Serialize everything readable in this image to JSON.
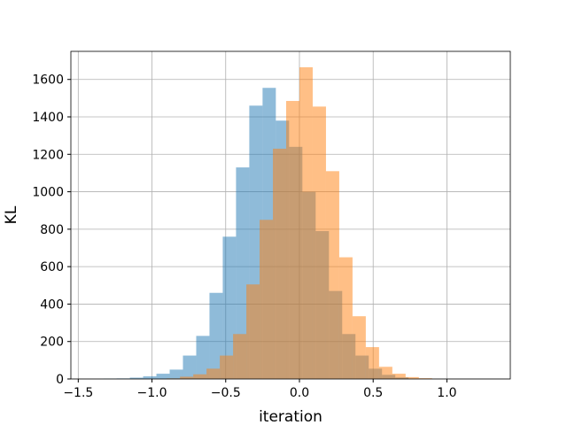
{
  "chart_data": {
    "type": "bar",
    "subtype": "histogram",
    "title": "",
    "xlabel": "iteration",
    "ylabel": "KL",
    "xlim": [
      -1.55,
      1.43
    ],
    "ylim": [
      0,
      1750
    ],
    "x_ticks": [
      -1.5,
      -1.0,
      -0.5,
      0.0,
      0.5,
      1.0
    ],
    "x_tick_labels": [
      "−1.5",
      "−1.0",
      "−0.5",
      "0.0",
      "0.5",
      "1.0"
    ],
    "y_ticks": [
      0,
      200,
      400,
      600,
      800,
      1000,
      1200,
      1400,
      1600
    ],
    "y_tick_labels": [
      "0",
      "200",
      "400",
      "600",
      "800",
      "1000",
      "1200",
      "1400",
      "1600"
    ],
    "grid": true,
    "legend": "none",
    "series": [
      {
        "color": "#1f77b4",
        "alpha": 0.5,
        "bins": [
          [
            -1.33,
            -1.24,
            2
          ],
          [
            -1.24,
            -1.15,
            3
          ],
          [
            -1.15,
            -1.06,
            7
          ],
          [
            -1.06,
            -0.97,
            14
          ],
          [
            -0.97,
            -0.88,
            28
          ],
          [
            -0.88,
            -0.79,
            50
          ],
          [
            -0.79,
            -0.7,
            125
          ],
          [
            -0.7,
            -0.61,
            230
          ],
          [
            -0.61,
            -0.52,
            460
          ],
          [
            -0.52,
            -0.43,
            760
          ],
          [
            -0.43,
            -0.34,
            1130
          ],
          [
            -0.34,
            -0.25,
            1460
          ],
          [
            -0.25,
            -0.16,
            1555
          ],
          [
            -0.16,
            -0.07,
            1380
          ],
          [
            -0.07,
            0.02,
            1240
          ],
          [
            0.02,
            0.11,
            1000
          ],
          [
            0.11,
            0.2,
            790
          ],
          [
            0.2,
            0.29,
            470
          ],
          [
            0.29,
            0.38,
            240
          ],
          [
            0.38,
            0.47,
            125
          ],
          [
            0.47,
            0.56,
            55
          ],
          [
            0.56,
            0.65,
            22
          ],
          [
            0.65,
            0.74,
            8
          ]
        ]
      },
      {
        "color": "#ff7f0e",
        "alpha": 0.5,
        "bins": [
          [
            -0.9,
            -0.81,
            3
          ],
          [
            -0.81,
            -0.72,
            12
          ],
          [
            -0.72,
            -0.63,
            25
          ],
          [
            -0.63,
            -0.54,
            55
          ],
          [
            -0.54,
            -0.45,
            125
          ],
          [
            -0.45,
            -0.36,
            240
          ],
          [
            -0.36,
            -0.27,
            505
          ],
          [
            -0.27,
            -0.18,
            850
          ],
          [
            -0.18,
            -0.09,
            1230
          ],
          [
            -0.09,
            0.0,
            1485
          ],
          [
            0.0,
            0.09,
            1665
          ],
          [
            0.09,
            0.18,
            1455
          ],
          [
            0.18,
            0.27,
            1110
          ],
          [
            0.27,
            0.36,
            650
          ],
          [
            0.36,
            0.45,
            335
          ],
          [
            0.45,
            0.54,
            170
          ],
          [
            0.54,
            0.63,
            65
          ],
          [
            0.63,
            0.72,
            28
          ],
          [
            0.72,
            0.81,
            10
          ],
          [
            0.81,
            0.9,
            4
          ]
        ]
      }
    ]
  }
}
